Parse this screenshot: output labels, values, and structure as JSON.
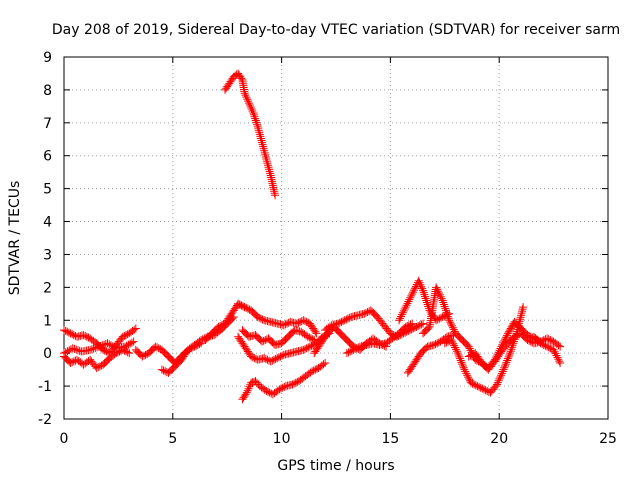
{
  "chart_data": {
    "type": "scatter",
    "title": "Day 208 of 2019, Sidereal Day-to-day VTEC variation (SDTVAR) for receiver sarm",
    "xlabel": "GPS time / hours",
    "ylabel": "SDTVAR / TECUs",
    "xlim": [
      0,
      25
    ],
    "ylim": [
      -2,
      9
    ],
    "xticks": [
      0,
      5,
      10,
      15,
      20,
      25
    ],
    "yticks": [
      -2,
      -1,
      0,
      1,
      2,
      3,
      4,
      5,
      6,
      7,
      8,
      9
    ],
    "grid": true,
    "marker": "+",
    "colors": {
      "series": "#ff0000",
      "grid": "#a0a0a0",
      "axis": "#000000"
    },
    "series": [
      {
        "name": "sarm",
        "segments": [
          {
            "x": [
              0.0,
              0.3,
              0.6,
              0.9,
              1.2,
              1.5,
              1.8,
              2.1,
              2.4,
              2.7,
              3.0,
              3.3
            ],
            "y": [
              0.7,
              0.6,
              0.5,
              0.55,
              0.45,
              0.3,
              0.1,
              0.0,
              0.25,
              0.5,
              0.6,
              0.75
            ]
          },
          {
            "x": [
              0.0,
              0.3,
              0.6,
              0.9,
              1.2,
              1.5,
              1.8,
              2.1,
              2.4,
              2.7,
              3.0
            ],
            "y": [
              -0.1,
              -0.3,
              -0.2,
              -0.35,
              -0.2,
              -0.45,
              -0.35,
              -0.15,
              0.0,
              0.1,
              0.0
            ]
          },
          {
            "x": [
              0.0,
              0.4,
              0.8,
              1.2,
              1.6,
              2.0,
              2.4,
              2.8,
              3.2
            ],
            "y": [
              0.0,
              0.15,
              0.05,
              0.1,
              0.2,
              0.3,
              0.15,
              0.2,
              0.35
            ]
          },
          {
            "x": [
              3.3,
              3.6,
              3.9,
              4.2,
              4.5,
              4.8,
              5.1,
              5.4,
              5.7,
              6.0,
              6.3,
              6.6,
              6.9,
              7.2,
              7.5,
              7.8
            ],
            "y": [
              0.1,
              -0.1,
              0.0,
              0.2,
              0.1,
              -0.1,
              -0.3,
              -0.1,
              0.1,
              0.25,
              0.4,
              0.5,
              0.55,
              0.7,
              0.9,
              1.1
            ]
          },
          {
            "x": [
              4.5,
              4.8,
              5.1,
              5.4,
              5.7,
              6.0,
              6.3
            ],
            "y": [
              -0.5,
              -0.6,
              -0.4,
              -0.2,
              0.1,
              0.2,
              0.3
            ]
          },
          {
            "x": [
              6.5,
              6.8,
              7.1,
              7.4,
              7.7,
              8.0,
              8.3
            ],
            "y": [
              0.4,
              0.6,
              0.8,
              0.9,
              1.2,
              1.5,
              1.4
            ]
          },
          {
            "x": [
              7.4,
              7.6,
              7.8,
              8.0,
              8.2,
              8.3,
              8.5,
              8.7,
              8.9,
              9.1,
              9.3,
              9.5,
              9.7
            ],
            "y": [
              8.0,
              8.2,
              8.4,
              8.5,
              8.3,
              7.9,
              7.6,
              7.3,
              6.9,
              6.4,
              5.9,
              5.4,
              4.8
            ]
          },
          {
            "x": [
              8.0,
              8.3,
              8.6,
              8.9,
              9.2,
              9.5,
              9.8,
              10.1,
              10.4,
              10.7,
              11.0,
              11.3,
              11.6
            ],
            "y": [
              1.5,
              1.4,
              1.3,
              1.1,
              1.0,
              0.95,
              0.9,
              0.85,
              0.95,
              0.9,
              1.0,
              0.9,
              0.6
            ]
          },
          {
            "x": [
              8.2,
              8.5,
              8.8,
              9.1,
              9.4,
              9.7,
              10.0,
              10.3,
              10.6,
              10.9,
              11.2,
              11.5
            ],
            "y": [
              0.7,
              0.5,
              0.55,
              0.35,
              0.45,
              0.25,
              0.3,
              0.5,
              0.7,
              0.65,
              0.5,
              0.4
            ]
          },
          {
            "x": [
              8.0,
              8.3,
              8.6,
              8.9,
              9.2,
              9.5,
              9.8,
              10.1,
              10.4,
              10.7,
              11.0,
              11.3,
              11.6,
              11.9,
              12.2
            ],
            "y": [
              0.5,
              0.2,
              -0.1,
              -0.2,
              -0.15,
              -0.25,
              -0.15,
              -0.05,
              0.0,
              0.05,
              0.1,
              0.2,
              0.3,
              0.5,
              0.6
            ]
          },
          {
            "x": [
              8.2,
              8.4,
              8.6,
              8.8,
              9.0,
              9.3,
              9.6,
              9.9,
              10.2,
              10.5,
              10.8,
              11.1,
              11.4,
              11.7,
              12.0
            ],
            "y": [
              -1.4,
              -1.2,
              -0.9,
              -0.85,
              -1.0,
              -1.15,
              -1.25,
              -1.1,
              -1.0,
              -0.95,
              -0.85,
              -0.7,
              -0.55,
              -0.45,
              -0.3
            ]
          },
          {
            "x": [
              11.5,
              11.8,
              12.1,
              12.4,
              12.7,
              13.0,
              13.3,
              13.6,
              13.9,
              14.2,
              14.5,
              14.8
            ],
            "y": [
              0.0,
              0.3,
              0.6,
              0.8,
              0.6,
              0.4,
              0.2,
              0.1,
              0.3,
              0.45,
              0.3,
              0.2
            ]
          },
          {
            "x": [
              12.0,
              12.3,
              12.6,
              12.9,
              13.2,
              13.5,
              13.8,
              14.1,
              14.4,
              14.7,
              15.0,
              15.3,
              15.6,
              15.9,
              16.2,
              16.5
            ],
            "y": [
              0.7,
              0.85,
              0.9,
              1.0,
              1.1,
              1.15,
              1.2,
              1.3,
              1.1,
              0.85,
              0.6,
              0.5,
              0.6,
              0.7,
              0.8,
              0.9
            ]
          },
          {
            "x": [
              13.0,
              13.3,
              13.6,
              13.9,
              14.2,
              14.5,
              14.8,
              15.1,
              15.4,
              15.7,
              16.0
            ],
            "y": [
              0.0,
              0.1,
              0.2,
              0.25,
              0.3,
              0.25,
              0.3,
              0.45,
              0.6,
              0.8,
              0.9
            ]
          },
          {
            "x": [
              15.4,
              15.7,
              16.0,
              16.3,
              16.5,
              16.8,
              17.1,
              17.4,
              17.7
            ],
            "y": [
              1.0,
              1.4,
              1.8,
              2.2,
              1.9,
              1.3,
              1.0,
              1.1,
              1.2
            ]
          },
          {
            "x": [
              15.8,
              16.1,
              16.4,
              16.7,
              17.0,
              17.3,
              17.6,
              17.9
            ],
            "y": [
              -0.6,
              -0.3,
              0.0,
              0.2,
              0.25,
              0.35,
              0.5,
              0.55
            ]
          },
          {
            "x": [
              16.5,
              16.8,
              17.1,
              17.4,
              17.7,
              18.0,
              18.3,
              18.6,
              18.9,
              19.2,
              19.5,
              19.8,
              20.1,
              20.4,
              20.7,
              21.0,
              21.3,
              21.6,
              21.9
            ],
            "y": [
              0.6,
              0.8,
              2.0,
              1.6,
              1.0,
              0.6,
              0.4,
              0.2,
              -0.2,
              -0.3,
              -0.45,
              -0.2,
              0.2,
              0.6,
              0.95,
              0.75,
              0.55,
              0.45,
              0.35
            ]
          },
          {
            "x": [
              17.5,
              17.8,
              18.1,
              18.4,
              18.7,
              19.0,
              19.3,
              19.6,
              19.9,
              20.2,
              20.5,
              20.8,
              21.1
            ],
            "y": [
              0.3,
              0.4,
              0.0,
              -0.5,
              -0.9,
              -1.0,
              -1.1,
              -1.2,
              -0.95,
              -0.5,
              0.0,
              0.6,
              1.4
            ]
          },
          {
            "x": [
              18.6,
              18.9,
              19.2,
              19.5,
              19.8,
              20.1,
              20.4,
              20.7,
              21.0,
              21.3,
              21.6,
              21.9,
              22.2,
              22.5,
              22.8
            ],
            "y": [
              -0.1,
              0.0,
              -0.3,
              -0.5,
              -0.25,
              0.05,
              0.3,
              0.5,
              0.6,
              0.4,
              0.3,
              0.35,
              0.45,
              0.35,
              0.2
            ]
          },
          {
            "x": [
              21.6,
              21.9,
              22.2,
              22.5,
              22.8
            ],
            "y": [
              0.5,
              0.3,
              0.2,
              0.1,
              -0.3
            ]
          }
        ]
      }
    ]
  }
}
